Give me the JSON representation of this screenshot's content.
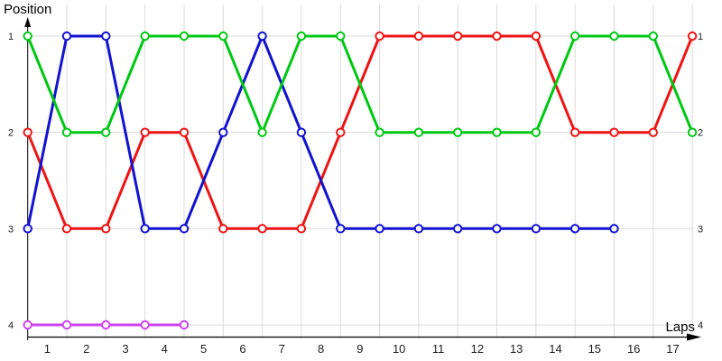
{
  "chart_data": {
    "type": "line",
    "title": "",
    "xlabel": "Laps",
    "ylabel": "Position",
    "x_tick_labels": [
      "1",
      "2",
      "3",
      "4",
      "5",
      "6",
      "7",
      "8",
      "9",
      "10",
      "11",
      "12",
      "13",
      "14",
      "15",
      "16",
      "17"
    ],
    "y_tick_labels_left": [
      "1",
      "2",
      "3",
      "4"
    ],
    "y_tick_labels_right": [
      "1",
      "2",
      "3",
      "4"
    ],
    "ylim": [
      1,
      4
    ],
    "y_axis_inverted": true,
    "x_points_start_lap": 0.5,
    "x_points_step": 1,
    "grid": "on",
    "grid_color": "#d9d9d9",
    "axis_color": "#000000",
    "tick_label_color": "#1c1c1c",
    "marker_style": "open-circle-white-fill",
    "legend_position": "none",
    "series": [
      {
        "name": "red",
        "color": "#ee1414",
        "positions": [
          2,
          3,
          3,
          2,
          2,
          3,
          3,
          3,
          2,
          1,
          1,
          1,
          1,
          1,
          2,
          2,
          2,
          1
        ]
      },
      {
        "name": "blue",
        "color": "#1212d0",
        "positions": [
          3,
          1,
          1,
          3,
          3,
          2,
          1,
          2,
          3,
          3,
          3,
          3,
          3,
          3,
          3,
          3
        ]
      },
      {
        "name": "green",
        "color": "#00c814",
        "positions": [
          1,
          2,
          2,
          1,
          1,
          1,
          2,
          1,
          1,
          2,
          2,
          2,
          2,
          2,
          1,
          1,
          1,
          2
        ]
      },
      {
        "name": "violet",
        "color": "#cc44ee",
        "positions": [
          4,
          4,
          4,
          4,
          4
        ]
      }
    ]
  }
}
